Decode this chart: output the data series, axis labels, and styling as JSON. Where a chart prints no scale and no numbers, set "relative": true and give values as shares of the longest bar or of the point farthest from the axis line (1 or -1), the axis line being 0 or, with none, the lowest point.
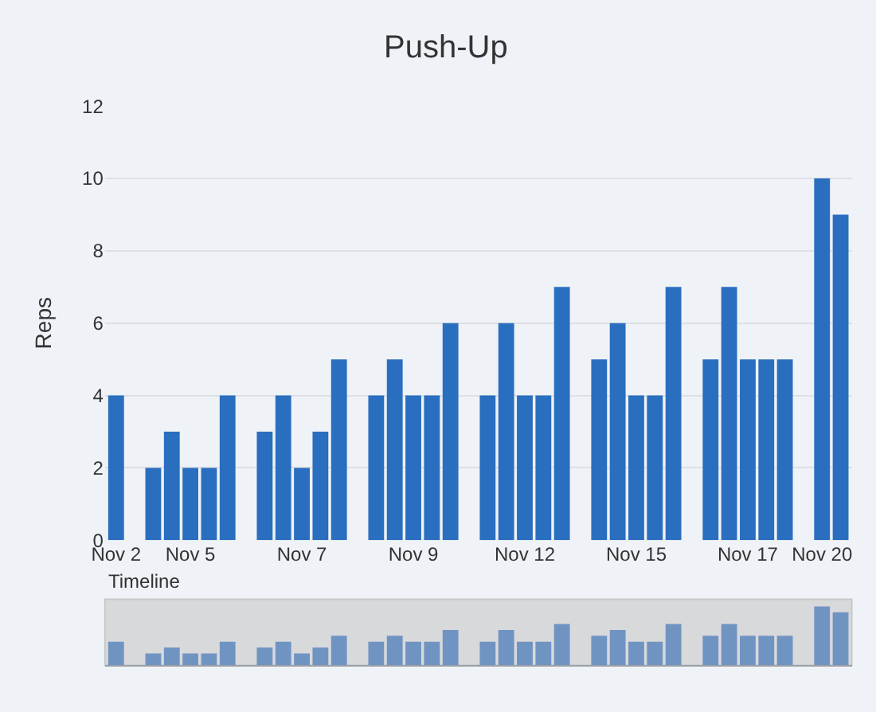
{
  "chart_data": [
    {
      "type": "bar",
      "title": "Push-Up",
      "ylabel": "Reps",
      "color": "#2a6ebf",
      "ylim": [
        0,
        12
      ],
      "yticks": [
        0,
        2,
        4,
        6,
        8,
        10,
        12
      ],
      "grid": "y",
      "categories": [
        "Nov 2",
        null,
        null,
        null,
        "Nov 5",
        null,
        null,
        null,
        null,
        null,
        "Nov 7",
        null,
        null,
        null,
        null,
        null,
        "Nov 9",
        null,
        null,
        null,
        null,
        null,
        "Nov 12",
        null,
        null,
        null,
        null,
        null,
        "Nov 15",
        null,
        null,
        null,
        null,
        null,
        "Nov 17",
        null,
        null,
        null,
        "Nov 20",
        null
      ],
      "values": [
        4,
        null,
        2,
        3,
        2,
        2,
        4,
        null,
        3,
        4,
        2,
        3,
        5,
        null,
        4,
        5,
        4,
        4,
        6,
        null,
        4,
        6,
        4,
        4,
        7,
        null,
        5,
        6,
        4,
        4,
        7,
        null,
        5,
        7,
        5,
        5,
        5,
        null,
        10,
        9
      ]
    },
    {
      "type": "bar",
      "title": "Timeline",
      "relative": true,
      "color": "#7094c2",
      "categories": [
        null,
        null,
        null,
        null,
        null,
        null,
        null,
        null,
        null,
        null,
        null,
        null,
        null,
        null,
        null,
        null,
        null,
        null,
        null,
        null,
        null,
        null,
        null,
        null,
        null,
        null,
        null,
        null,
        null,
        null,
        null,
        null,
        null,
        null,
        null,
        null,
        null,
        null,
        null,
        null
      ],
      "values": [
        0.4,
        null,
        0.2,
        0.3,
        0.2,
        0.2,
        0.4,
        null,
        0.3,
        0.4,
        0.2,
        0.3,
        0.5,
        null,
        0.4,
        0.5,
        0.4,
        0.4,
        0.6,
        null,
        0.4,
        0.6,
        0.4,
        0.4,
        0.7,
        null,
        0.5,
        0.6,
        0.4,
        0.4,
        0.7,
        null,
        0.5,
        0.7,
        0.5,
        0.5,
        0.5,
        null,
        1,
        0.9
      ]
    }
  ]
}
